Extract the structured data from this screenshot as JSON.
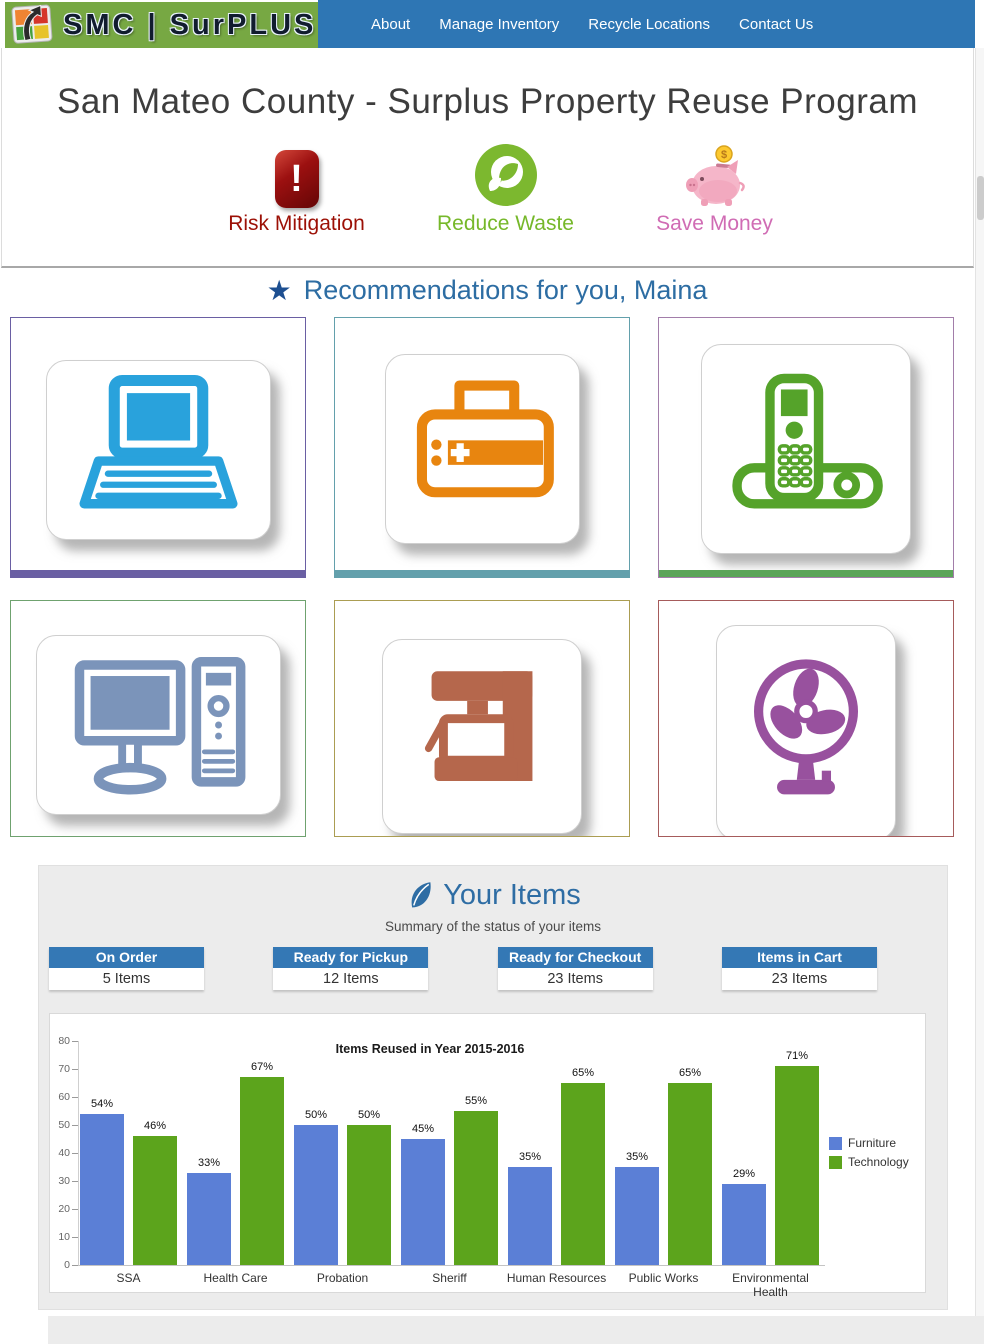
{
  "header": {
    "logo_text": "SMC | SurPLUS",
    "brand_bg": "#77a843",
    "nav_bg": "#2e76b4",
    "nav_items": [
      "About",
      "Manage Inventory",
      "Recycle Locations",
      "Contact Us"
    ]
  },
  "hero": {
    "title": "San Mateo County - Surplus Property Reuse Program",
    "features": [
      {
        "label": "Risk Mitigation",
        "icon": "exclamation-badge-icon",
        "color": "#9c1006",
        "exclamation": "!"
      },
      {
        "label": "Reduce Waste",
        "icon": "leaf-circle-icon",
        "color": "#76b82a"
      },
      {
        "label": "Save Money",
        "icon": "piggy-bank-icon",
        "color": "#d06cb4"
      }
    ]
  },
  "recommendations": {
    "star_icon": "★",
    "heading": "Recommendations for you, Maina",
    "heading_color": "#2d6da3",
    "items": [
      {
        "name": "laptop",
        "color": "#29a2dc",
        "border": "#6a5fa3",
        "bottom_bar": "#6a5fa3"
      },
      {
        "name": "printer",
        "color": "#e8850f",
        "border": "#63a0ac",
        "bottom_bar": "#63a0ac"
      },
      {
        "name": "cordless-phone",
        "color": "#55a32a",
        "border": "#a27daa",
        "bottom_bar": "#5ba458"
      },
      {
        "name": "desktop-computer",
        "color": "#7b94ba",
        "border": "#6fa26f"
      },
      {
        "name": "coffee-maker",
        "color": "#b5674c",
        "border": "#ab9d52"
      },
      {
        "name": "fan",
        "color": "#98519e",
        "border": "#a65b5b"
      }
    ]
  },
  "your_items": {
    "heading": "Your Items",
    "subtitle": "Summary of the status of your items",
    "status_header_bg": "#3478b5",
    "statuses": [
      {
        "label": "On Order",
        "count": "5 Items"
      },
      {
        "label": "Ready for Pickup",
        "count": "12 Items"
      },
      {
        "label": "Ready for Checkout",
        "count": "23 Items"
      },
      {
        "label": "Items in Cart",
        "count": "23 Items"
      }
    ]
  },
  "chart_data": {
    "type": "bar",
    "title": "Items Reused in Year 2015-2016",
    "categories": [
      "SSA",
      "Health Care",
      "Probation",
      "Sheriff",
      "Human Resources",
      "Public Works",
      "Environmental Health"
    ],
    "series": [
      {
        "name": "Furniture",
        "color": "#5b7fd6",
        "values": [
          54,
          33,
          50,
          45,
          35,
          35,
          29
        ]
      },
      {
        "name": "Technology",
        "color": "#5ca41c",
        "values": [
          46,
          67,
          50,
          55,
          65,
          65,
          71
        ]
      }
    ],
    "value_suffix": "%",
    "ylim": [
      0,
      80
    ],
    "ytick_step": 10,
    "grid": false,
    "legend_position": "right"
  }
}
